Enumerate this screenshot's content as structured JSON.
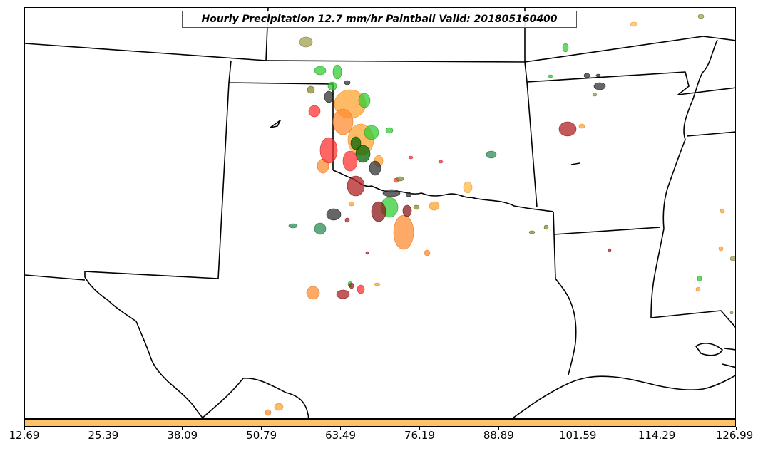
{
  "title": "Hourly Precipitation 12.7 mm/hr Paintball Valid: 201805160400",
  "colorbar": {
    "color": "#ffc266",
    "ticks": [
      "12.69",
      "25.39",
      "38.09",
      "50.79",
      "63.49",
      "76.19",
      "88.89",
      "101.59",
      "114.29",
      "126.99"
    ]
  },
  "colors": {
    "border_line": "#000000",
    "paintball_colors": [
      "#ff8c33",
      "#ffa333",
      "#33cc33",
      "#b22222",
      "#ff3333",
      "#333333",
      "#8b8b2a",
      "#2e8b57",
      "#006400",
      "#ff6633",
      "#ffb84d",
      "#a0a050"
    ]
  }
}
